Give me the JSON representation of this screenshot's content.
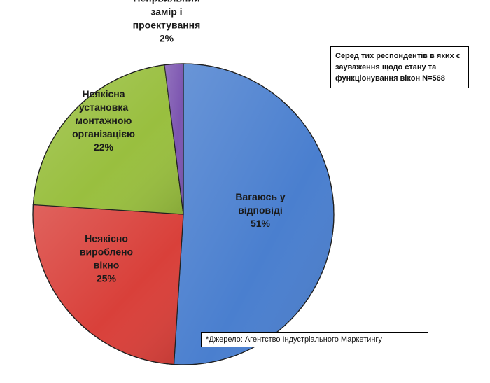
{
  "chart_data": {
    "type": "pie",
    "title": "",
    "slices": [
      {
        "label_lines": [
          "Вагаюсь у",
          "відповіді",
          "51%"
        ],
        "value": 51,
        "color": "#4a7fcf"
      },
      {
        "label_lines": [
          "Неякісно",
          "вироблено",
          "вікно",
          "25%"
        ],
        "value": 25,
        "color": "#d9403a"
      },
      {
        "label_lines": [
          "Неякісна",
          "установка",
          "монтажною",
          "організацією",
          "22%"
        ],
        "value": 22,
        "color": "#99bf3f"
      },
      {
        "label_lines": [
          "Непрвильний",
          "замір і",
          "проектування",
          "2%"
        ],
        "value": 2,
        "color": "#7c55b0"
      }
    ],
    "legend": "none"
  },
  "note": {
    "text": "Серед тих респондентів в яких є зауваження щодо стану та функціонування вікон N=568"
  },
  "source": {
    "text": "*Джерело: Агентство Індустріального Маркетингу"
  }
}
